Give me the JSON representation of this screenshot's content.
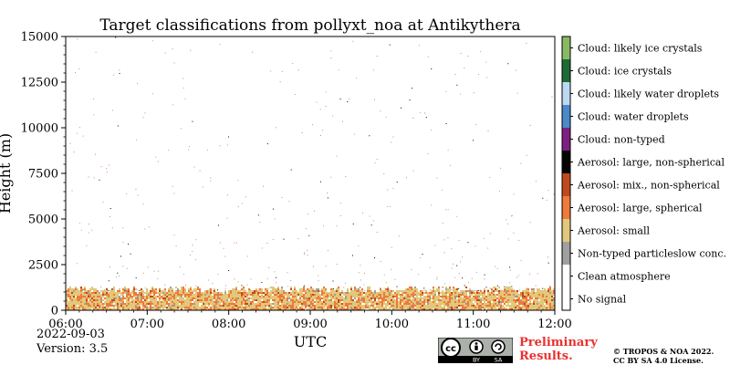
{
  "chart_data": {
    "type": "heatmap",
    "title": "Target classifications from pollyxt_noa at Antikythera",
    "xlabel": "UTC",
    "ylabel": "Height (m)",
    "x_range": [
      "06:00",
      "12:00"
    ],
    "xlim_hours": [
      6,
      12
    ],
    "ylim": [
      0,
      15000
    ],
    "x_ticks": [
      "06:00",
      "07:00",
      "08:00",
      "09:00",
      "10:00",
      "11:00",
      "12:00"
    ],
    "y_ticks": [
      0,
      2500,
      5000,
      7500,
      10000,
      12500,
      15000
    ],
    "y_tick_labels": [
      "0",
      "2500",
      "5000",
      "7500",
      "10000",
      "12500",
      "15000"
    ],
    "classes": [
      {
        "label": "No signal",
        "color": "#ffffff"
      },
      {
        "label": "Clean atmosphere",
        "color": "#ffffff"
      },
      {
        "label": "Non-typed particleslow conc.",
        "color": "#a0a0a0"
      },
      {
        "label": "Aerosol: small",
        "color": "#e1c87a"
      },
      {
        "label": "Aerosol: large, spherical",
        "color": "#ee7a3c"
      },
      {
        "label": "Aerosol: mix., non-spherical",
        "color": "#c14a1c"
      },
      {
        "label": "Aerosol: large, non-spherical",
        "color": "#050505"
      },
      {
        "label": "Cloud: non-typed",
        "color": "#7e2081"
      },
      {
        "label": "Cloud: water droplets",
        "color": "#4a8ac9"
      },
      {
        "label": "Cloud: likely water droplets",
        "color": "#bcd9f2"
      },
      {
        "label": "Cloud: ice crystals",
        "color": "#1c6b34"
      },
      {
        "label": "Cloud: likely ice crystals",
        "color": "#8ab964"
      }
    ],
    "aerosol_layer_top_m": 1100,
    "grid": false,
    "legend_placement": "right colorbar"
  },
  "footer": {
    "date": "2022-09-03",
    "version": "Version: 3.5",
    "preliminary_line1": "Preliminary",
    "preliminary_line2": "Results.",
    "copyright_line1": "© TROPOS & NOA 2022.",
    "copyright_line2": "CC BY SA 4.0 License.",
    "license_logo_text": [
      "cc",
      "BY",
      "SA"
    ]
  }
}
